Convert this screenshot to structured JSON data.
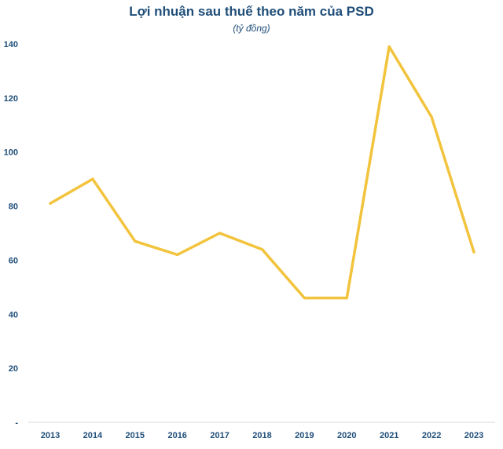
{
  "chart_data": {
    "type": "line",
    "title": "Lợi nhuận sau thuế theo năm của PSD",
    "subtitle": "(tỷ đồng)",
    "xlabel": "",
    "ylabel": "",
    "categories": [
      "2013",
      "2014",
      "2015",
      "2016",
      "2017",
      "2018",
      "2019",
      "2020",
      "2021",
      "2022",
      "2023"
    ],
    "series": [
      {
        "values": [
          81,
          90,
          67,
          62,
          70,
          64,
          46,
          46,
          139,
          113,
          63
        ]
      }
    ],
    "ylim": [
      0,
      140
    ],
    "yticks": [
      0,
      20,
      40,
      60,
      80,
      100,
      120,
      140
    ],
    "ytick_labels": [
      "-",
      "20",
      "40",
      "60",
      "80",
      "100",
      "120",
      "140"
    ],
    "grid": false,
    "legend": "none",
    "line_color": "#f2c33c",
    "text_color": "#1f4e79",
    "axis_color": "#d9d9d9"
  }
}
